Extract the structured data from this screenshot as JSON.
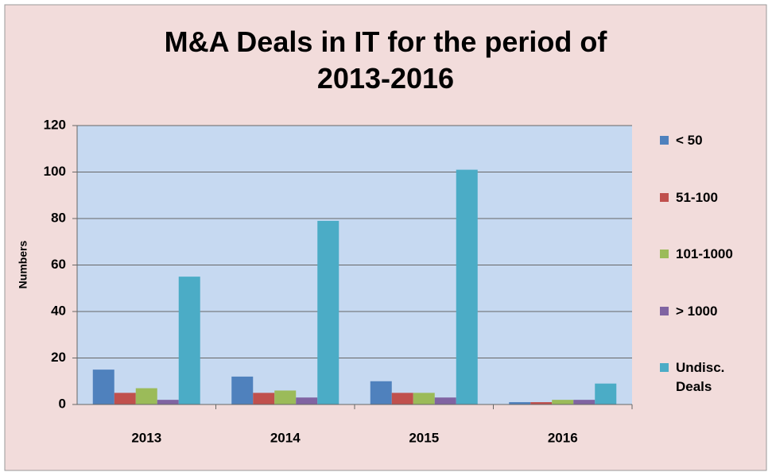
{
  "chart_data": {
    "type": "bar",
    "title": "M&A Deals in IT for the period of 2013-2016",
    "y_label": "Numbers",
    "categories": [
      "2013",
      "2014",
      "2015",
      "2016"
    ],
    "series": [
      {
        "name": "< 50",
        "color": "#4f81bd",
        "values": [
          15,
          12,
          10,
          1
        ]
      },
      {
        "name": "51-100",
        "color": "#c0504d",
        "values": [
          5,
          5,
          5,
          1
        ]
      },
      {
        "name": "101-1000",
        "color": "#9bbb59",
        "values": [
          7,
          6,
          5,
          2
        ]
      },
      {
        "name": "> 1000",
        "color": "#8064a2",
        "values": [
          2,
          3,
          3,
          2
        ]
      },
      {
        "name": "Undisc. Deals",
        "color": "#4bacc6",
        "values": [
          55,
          79,
          101,
          9
        ]
      }
    ],
    "ylim": [
      0,
      120
    ],
    "yticks": [
      0,
      20,
      40,
      60,
      80,
      100,
      120
    ],
    "grid": true,
    "legend": "right"
  }
}
